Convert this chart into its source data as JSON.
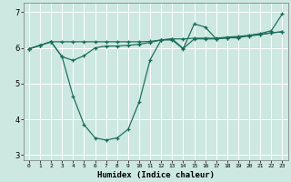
{
  "xlabel": "Humidex (Indice chaleur)",
  "ylabel": "",
  "bg_color": "#cce8e0",
  "line_color": "#1a6b5a",
  "grid_color": "#ffffff",
  "xlim": [
    -0.5,
    23.5
  ],
  "ylim": [
    2.85,
    7.25
  ],
  "yticks": [
    3,
    4,
    5,
    6,
    7
  ],
  "xticks": [
    0,
    1,
    2,
    3,
    4,
    5,
    6,
    7,
    8,
    9,
    10,
    11,
    12,
    13,
    14,
    15,
    16,
    17,
    18,
    19,
    20,
    21,
    22,
    23
  ],
  "line1_x": [
    0,
    1,
    2,
    3,
    4,
    5,
    6,
    7,
    8,
    9,
    10,
    11,
    12,
    13,
    14,
    15,
    16,
    17,
    18,
    19,
    20,
    21,
    22,
    23
  ],
  "line1_y": [
    5.97,
    6.07,
    6.17,
    5.75,
    4.65,
    3.85,
    3.48,
    3.42,
    3.48,
    3.72,
    4.48,
    5.67,
    6.22,
    6.22,
    5.97,
    6.67,
    6.58,
    6.25,
    6.28,
    6.28,
    6.35,
    6.4,
    6.48,
    6.95
  ],
  "line2_x": [
    0,
    1,
    2,
    3,
    4,
    5,
    6,
    7,
    8,
    9,
    10,
    11,
    12,
    13,
    14,
    15,
    16,
    17,
    18,
    19,
    20,
    21,
    22,
    23
  ],
  "line2_y": [
    5.97,
    6.07,
    6.17,
    6.17,
    6.17,
    6.17,
    6.17,
    6.17,
    6.17,
    6.17,
    6.17,
    6.18,
    6.22,
    6.25,
    6.25,
    6.27,
    6.27,
    6.27,
    6.3,
    6.32,
    6.35,
    6.38,
    6.42,
    6.45
  ],
  "line3_x": [
    0,
    1,
    2,
    3,
    4,
    5,
    6,
    7,
    8,
    9,
    10,
    11,
    12,
    13,
    14,
    15,
    16,
    17,
    18,
    19,
    20,
    21,
    22,
    23
  ],
  "line3_y": [
    5.97,
    6.07,
    6.17,
    5.75,
    5.65,
    5.78,
    6.0,
    6.05,
    6.05,
    6.07,
    6.1,
    6.15,
    6.22,
    6.25,
    5.98,
    6.25,
    6.25,
    6.25,
    6.28,
    6.3,
    6.33,
    6.37,
    6.42,
    6.45
  ]
}
